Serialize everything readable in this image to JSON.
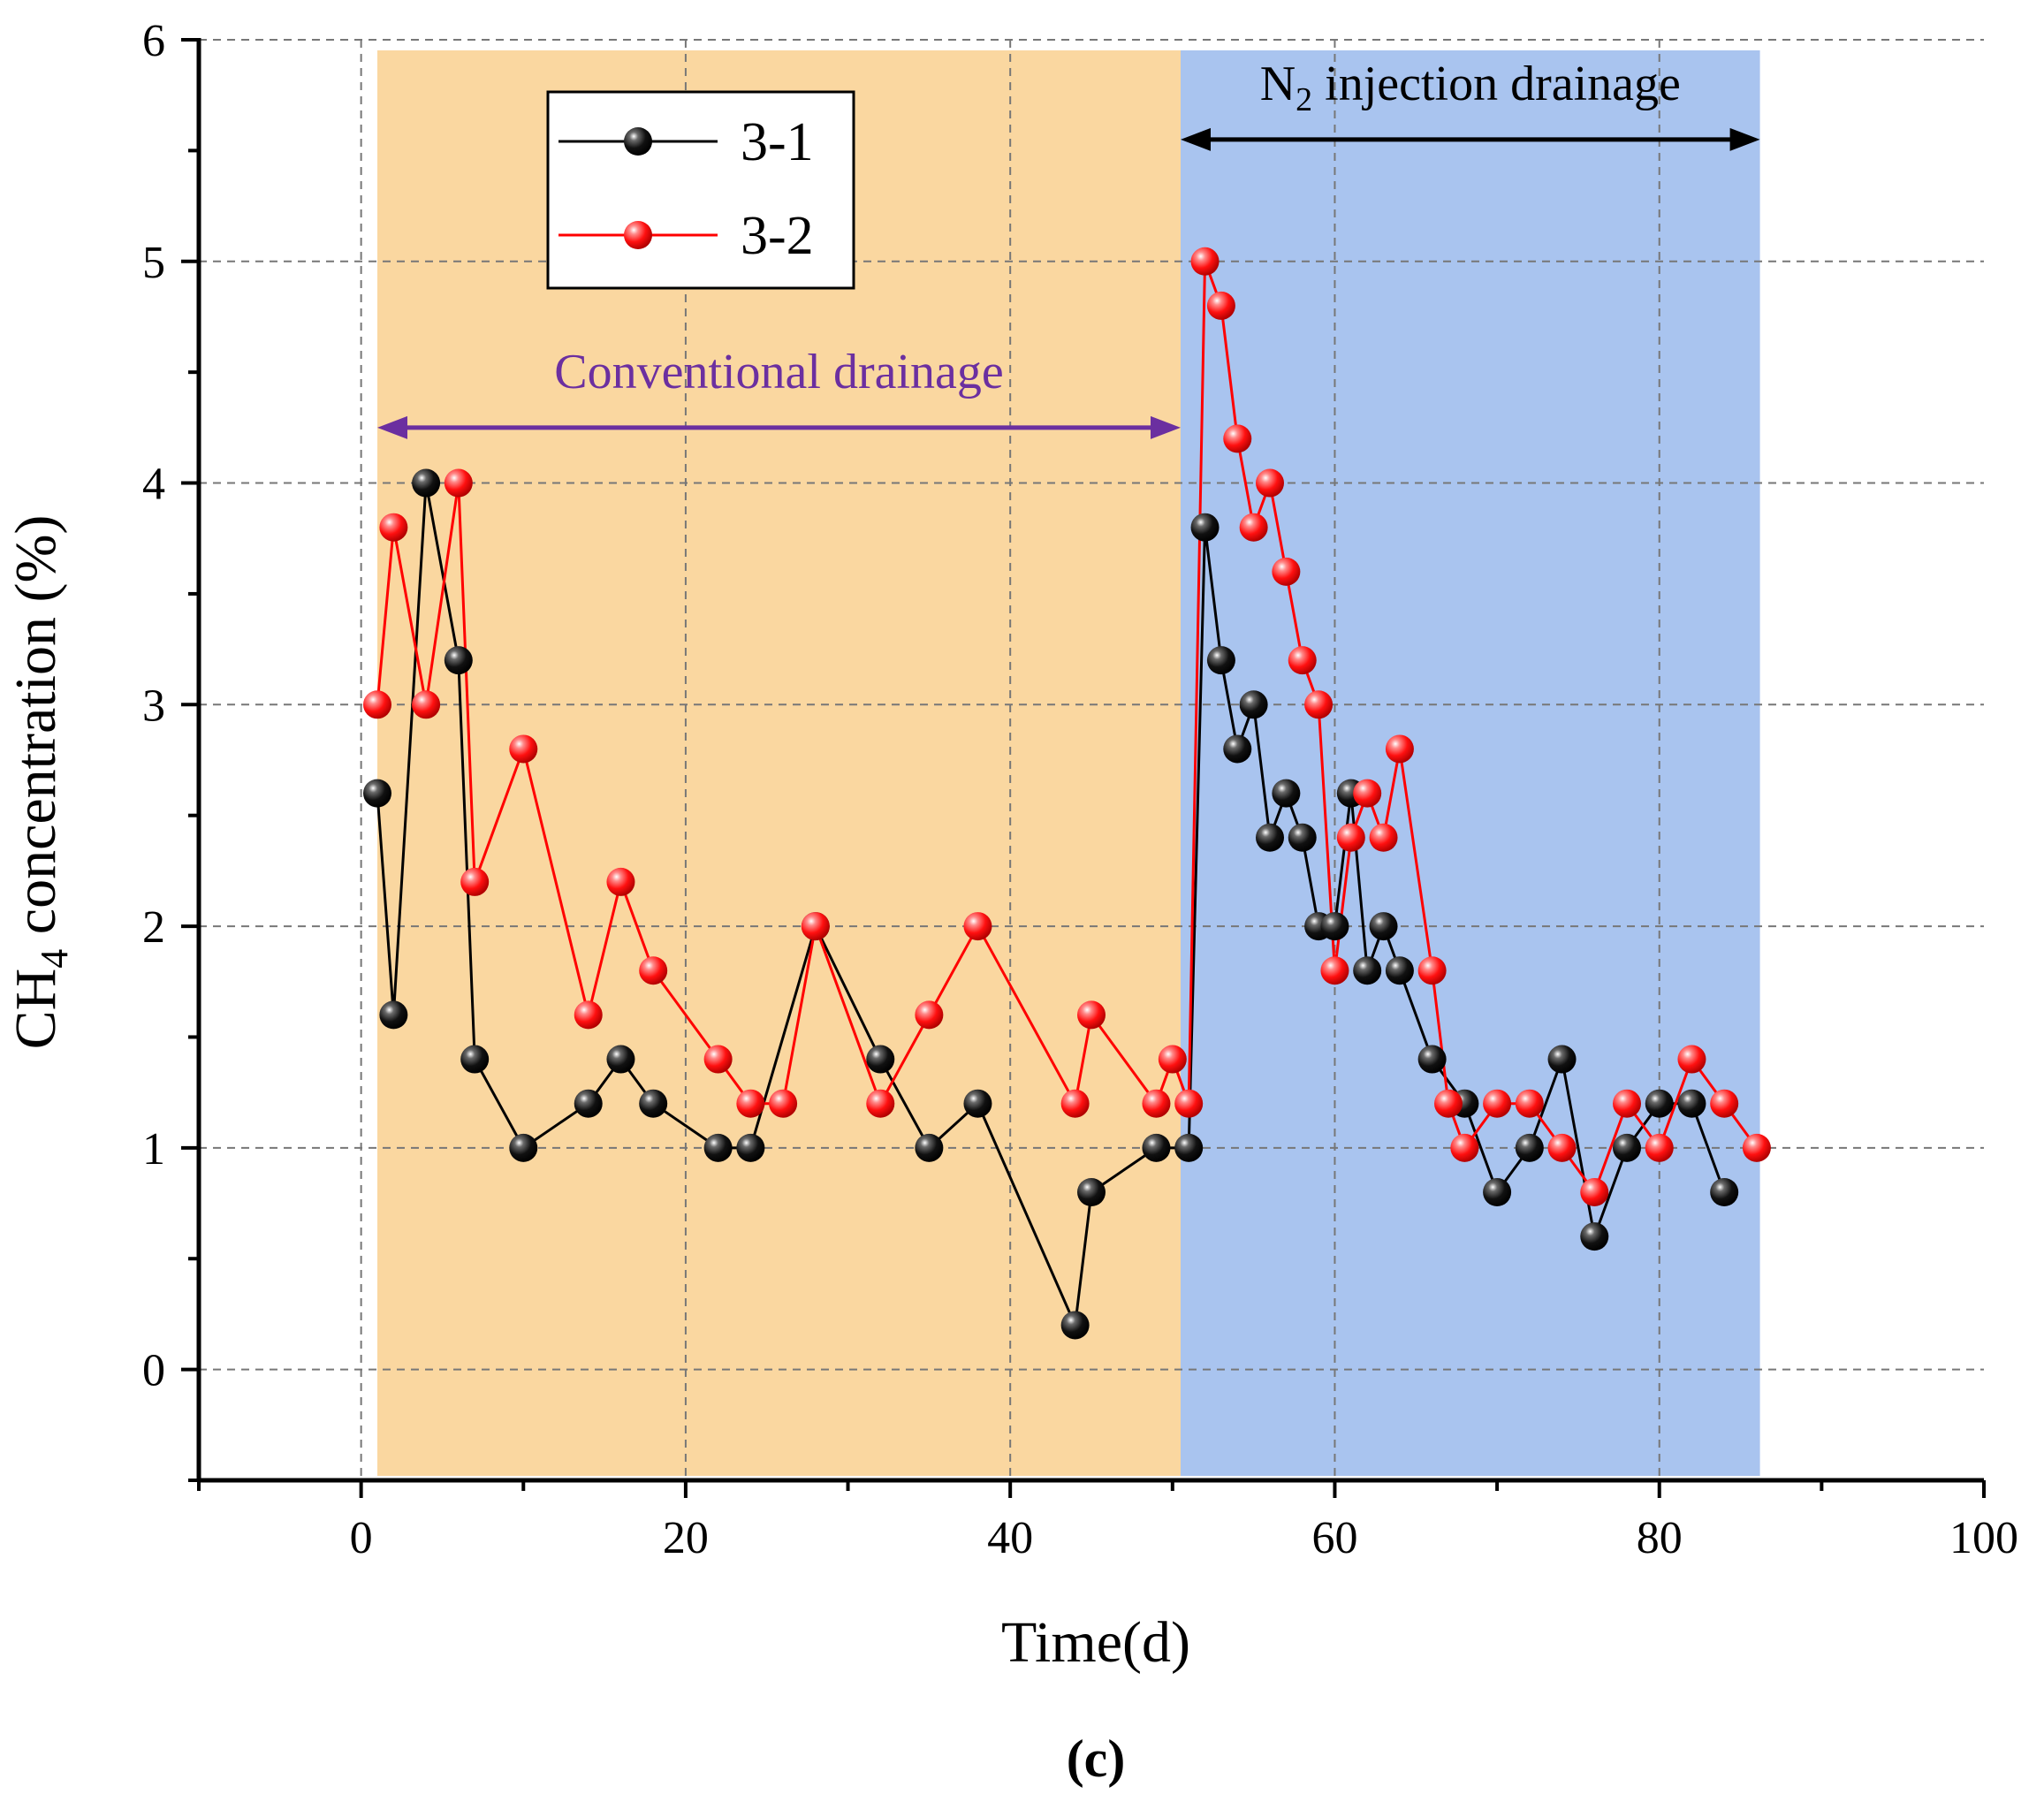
{
  "chart_data": {
    "type": "scatter",
    "title": "",
    "xlabel": "Time(d)",
    "ylabel_main": "CH",
    "ylabel_sub": "4",
    "ylabel_rest": " concentration (%)",
    "xlim": [
      -10,
      100
    ],
    "ylim": [
      -0.5,
      6
    ],
    "xticks": [
      0,
      20,
      40,
      60,
      80,
      100
    ],
    "yticks": [
      0,
      1,
      2,
      3,
      4,
      5,
      6
    ],
    "grid": true,
    "legend_position": "top-left",
    "series": [
      {
        "name": "3-1",
        "color": "#000000",
        "x": [
          1,
          2,
          4,
          6,
          7,
          10,
          14,
          16,
          18,
          22,
          24,
          28,
          32,
          35,
          38,
          44,
          45,
          49,
          51,
          52,
          53,
          54,
          55,
          56,
          57,
          58,
          59,
          60,
          61,
          62,
          63,
          64,
          66,
          68,
          70,
          72,
          74,
          76,
          78,
          80,
          82,
          84
        ],
        "y": [
          2.6,
          1.6,
          4.0,
          3.2,
          1.4,
          1.0,
          1.2,
          1.4,
          1.2,
          1.0,
          1.0,
          2.0,
          1.4,
          1.0,
          1.2,
          0.2,
          0.8,
          1.0,
          1.0,
          3.8,
          3.2,
          2.8,
          3.0,
          2.4,
          2.6,
          2.4,
          2.0,
          2.0,
          2.6,
          1.8,
          2.0,
          1.8,
          1.4,
          1.2,
          0.8,
          1.0,
          1.4,
          0.6,
          1.0,
          1.2,
          1.2,
          0.8
        ]
      },
      {
        "name": "3-2",
        "color": "#ff0000",
        "x": [
          1,
          2,
          4,
          6,
          7,
          10,
          14,
          16,
          18,
          22,
          24,
          26,
          28,
          32,
          35,
          38,
          44,
          45,
          49,
          50,
          51,
          52,
          53,
          54,
          55,
          56,
          57,
          58,
          59,
          60,
          61,
          62,
          63,
          64,
          66,
          67,
          68,
          70,
          72,
          74,
          76,
          78,
          80,
          82,
          84,
          86
        ],
        "y": [
          3.0,
          3.8,
          3.0,
          4.0,
          2.2,
          2.8,
          1.6,
          2.2,
          1.8,
          1.4,
          1.2,
          1.2,
          2.0,
          1.2,
          1.6,
          2.0,
          1.2,
          1.6,
          1.2,
          1.4,
          1.2,
          5.0,
          4.8,
          4.2,
          3.8,
          4.0,
          3.6,
          3.2,
          3.0,
          1.8,
          2.4,
          2.6,
          2.4,
          2.8,
          1.8,
          1.2,
          1.0,
          1.2,
          1.2,
          1.0,
          0.8,
          1.2,
          1.0,
          1.4,
          1.2,
          1.0
        ]
      }
    ],
    "regions": [
      {
        "name": "conventional",
        "x_start": 1,
        "x_end": 50.5,
        "color": "#fad7a0"
      },
      {
        "name": "n2-injection",
        "x_start": 50.5,
        "x_end": 86.2,
        "color": "#a9c4ef"
      }
    ],
    "annotations": {
      "conventional": {
        "text": "Conventional drainage",
        "color": "#6b2fa0",
        "x_start": 1,
        "x_end": 50.5,
        "y_arrow": 4.25,
        "y_text": 4.5
      },
      "n2_injection": {
        "text_main": "N",
        "text_sub": "2",
        "text_rest": " injection drainage",
        "color": "#000000",
        "x_start": 50.5,
        "x_end": 86.2,
        "y_arrow": 5.55,
        "y_text": 5.8
      }
    }
  },
  "panel_label": "(c)"
}
